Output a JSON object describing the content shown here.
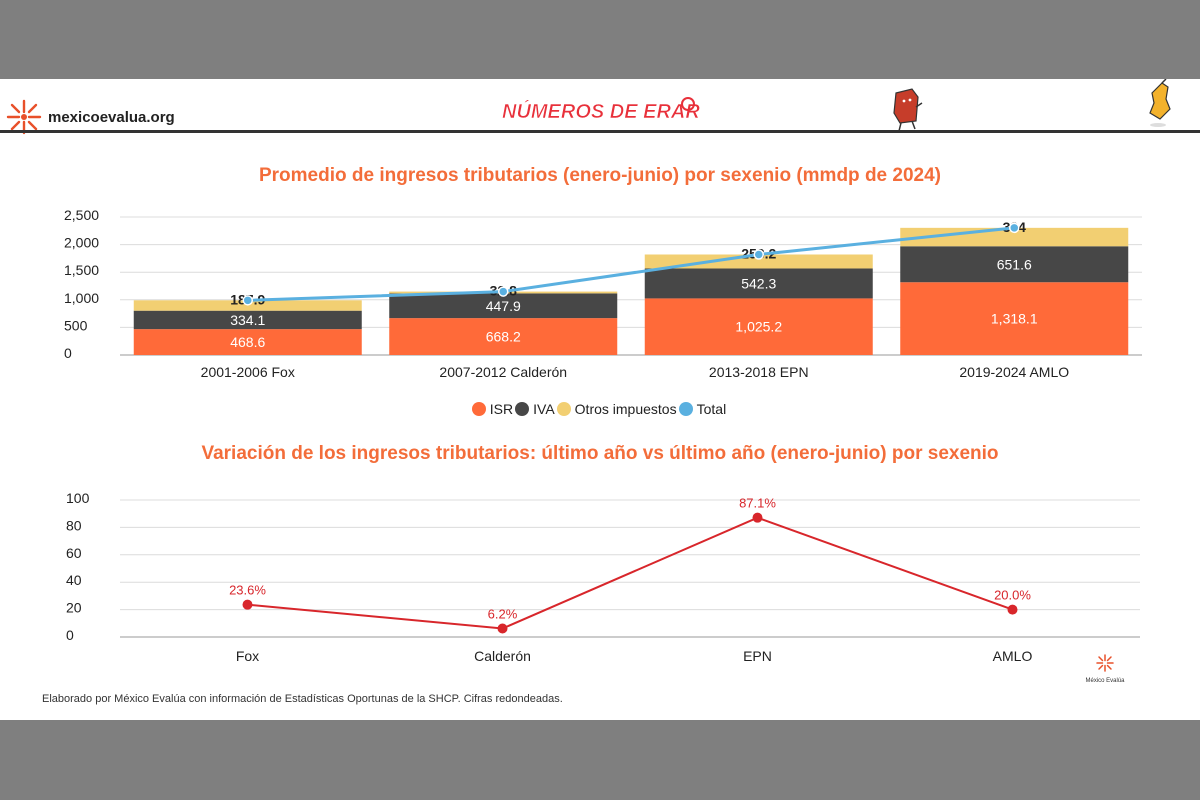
{
  "brand": {
    "text": "mexicoevalua.org",
    "icon": "mexico-evalua-star-icon",
    "color": "#e8502a"
  },
  "campaign_logo": {
    "text": "NÚMEROS DE ERARIO",
    "color": "#e8303a"
  },
  "mini_logo": {
    "text": "México Evalúa"
  },
  "footer_note": "Elaborado por México Evalúa con información de Estadísticas Oportunas de la SHCP. Cifras redondeadas.",
  "colors": {
    "isr": "#ff6a39",
    "iva": "#474747",
    "otros": "#f2cf72",
    "total": "#5ab0e0",
    "variation": "#d8262b",
    "title": "#f36d3a"
  },
  "legend": [
    {
      "label": "ISR",
      "color": "#ff6a39"
    },
    {
      "label": "IVA",
      "color": "#474747"
    },
    {
      "label": "Otros impuestos",
      "color": "#f2cf72"
    },
    {
      "label": "Total",
      "color": "#5ab0e0"
    }
  ],
  "chart_data": [
    {
      "type": "bar",
      "stacked": true,
      "title": "Promedio de ingresos  tributarios (enero-junio) por sexenio (mmdp de 2024)",
      "categories": [
        "2001-2006 Fox",
        "2007-2012 Calderón",
        "2013-2018 EPN",
        "2019-2024 AMLO"
      ],
      "series": [
        {
          "name": "ISR",
          "values": [
            468.6,
            668.2,
            1025.2,
            1318.1
          ],
          "labels": [
            "468.6",
            "668.2",
            "1,025.2",
            "1,318.1"
          ]
        },
        {
          "name": "IVA",
          "values": [
            334.1,
            447.9,
            542.3,
            651.6
          ],
          "labels": [
            "334.1",
            "447.9",
            "542.3",
            "651.6"
          ]
        },
        {
          "name": "Otros impuestos",
          "values": [
            187.9,
            32.8,
            253.2,
            334
          ],
          "labels": [
            "187.9",
            "32.8",
            "253.2",
            "334"
          ]
        }
      ],
      "line_series": {
        "name": "Total",
        "values": [
          990.6,
          1148.9,
          1820.7,
          2303.7
        ]
      },
      "ylim": [
        0,
        2500
      ],
      "yticks": [
        "0",
        "500",
        "1,000",
        "1,500",
        "2,000",
        "2,500"
      ],
      "ytick_values": [
        0,
        500,
        1000,
        1500,
        2000,
        2500
      ],
      "grid": true,
      "legend_position": "bottom"
    },
    {
      "type": "line",
      "title": "Variación de los ingresos tributarios: último año vs último año (enero-junio) por sexenio",
      "categories": [
        "Fox",
        "Calderón",
        "EPN",
        "AMLO"
      ],
      "values": [
        23.6,
        6.2,
        87.1,
        20.0
      ],
      "labels": [
        "23.6%",
        "6.2%",
        "87.1%",
        "20.0%"
      ],
      "ylim": [
        0,
        100
      ],
      "yticks": [
        "0",
        "20",
        "40",
        "60",
        "80",
        "100"
      ],
      "ytick_values": [
        0,
        20,
        40,
        60,
        80,
        100
      ],
      "grid": true
    }
  ]
}
